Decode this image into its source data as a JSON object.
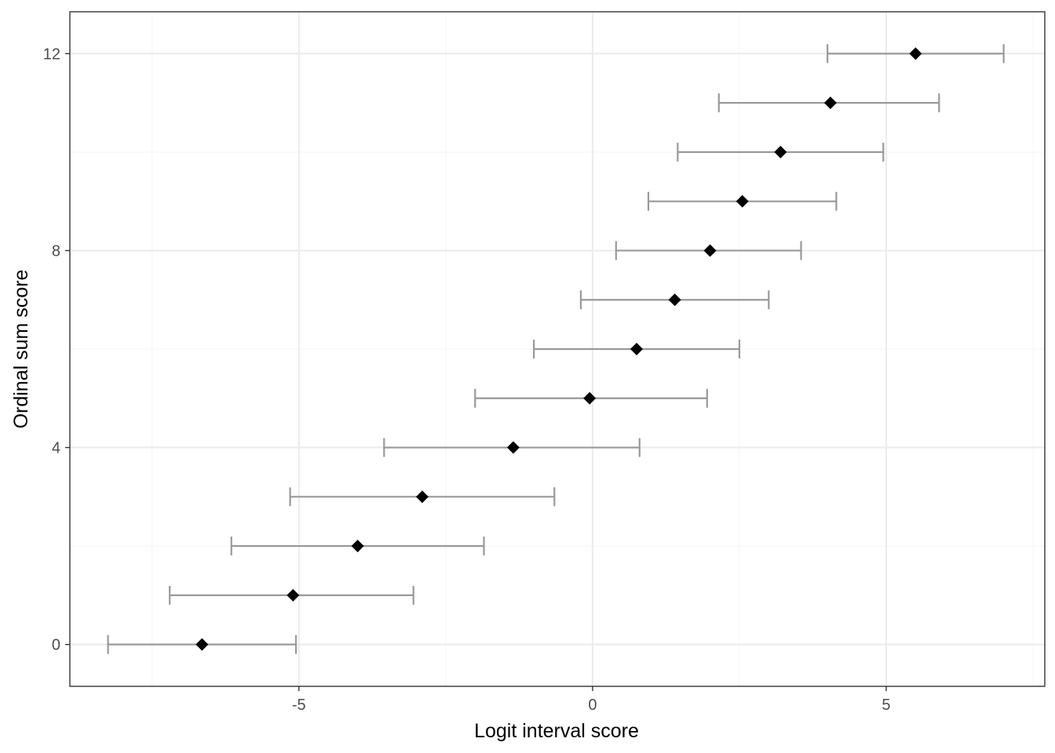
{
  "chart_data": {
    "type": "scatter",
    "subtype": "point-with-horizontal-errorbars",
    "title": "",
    "xlabel": "Logit interval score",
    "ylabel": "Ordinal sum score",
    "xlim": [
      -8.9,
      7.7
    ],
    "ylim": [
      -0.85,
      12.85
    ],
    "x_ticks": [
      -5,
      0,
      5
    ],
    "x_tick_labels": [
      "-5",
      "0",
      "5"
    ],
    "y_ticks": [
      0,
      4,
      8,
      12
    ],
    "y_tick_labels": [
      "0",
      "4",
      "8",
      "12"
    ],
    "grid": true,
    "legend": "none",
    "points": [
      {
        "y": 0,
        "x": -6.65,
        "xmin": -8.25,
        "xmax": -5.05
      },
      {
        "y": 1,
        "x": -5.1,
        "xmin": -7.2,
        "xmax": -3.05
      },
      {
        "y": 2,
        "x": -4.0,
        "xmin": -6.15,
        "xmax": -1.85
      },
      {
        "y": 3,
        "x": -2.9,
        "xmin": -5.15,
        "xmax": -0.65
      },
      {
        "y": 4,
        "x": -1.35,
        "xmin": -3.55,
        "xmax": 0.8
      },
      {
        "y": 5,
        "x": -0.05,
        "xmin": -2.0,
        "xmax": 1.95
      },
      {
        "y": 6,
        "x": 0.75,
        "xmin": -1.0,
        "xmax": 2.5
      },
      {
        "y": 7,
        "x": 1.4,
        "xmin": -0.2,
        "xmax": 3.0
      },
      {
        "y": 8,
        "x": 2.0,
        "xmin": 0.4,
        "xmax": 3.55
      },
      {
        "y": 9,
        "x": 2.55,
        "xmin": 0.95,
        "xmax": 4.15
      },
      {
        "y": 10,
        "x": 3.2,
        "xmin": 1.45,
        "xmax": 4.95
      },
      {
        "y": 11,
        "x": 4.05,
        "xmin": 2.15,
        "xmax": 5.9
      },
      {
        "y": 12,
        "x": 5.5,
        "xmin": 4.0,
        "xmax": 7.0
      }
    ],
    "colors": {
      "point": "#000000",
      "errorbar": "#999999",
      "grid_major": "#ebebeb",
      "grid_minor": "#f5f5f5",
      "panel_border": "#333333",
      "tick_text": "#4d4d4d"
    }
  }
}
